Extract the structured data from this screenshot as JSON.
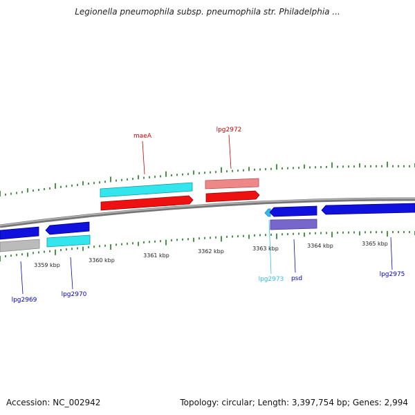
{
  "title": "Legionella pneumophila subsp. pneumophila str. Philadelphia ...",
  "footer": {
    "accession": "Accession: NC_002942",
    "topology": "Topology: circular; Length: 3,397,754 bp; Genes: 2,994"
  },
  "scale": {
    "unit": "kbp",
    "ticks": [
      {
        "label": "3359 kbp",
        "pos": 3359
      },
      {
        "label": "3360 kbp",
        "pos": 3360
      },
      {
        "label": "3361 kbp",
        "pos": 3361
      },
      {
        "label": "3362 kbp",
        "pos": 3362
      },
      {
        "label": "3363 kbp",
        "pos": 3363
      },
      {
        "label": "3364 kbp",
        "pos": 3364
      },
      {
        "label": "3365 kbp",
        "pos": 3365
      }
    ]
  },
  "genes": [
    {
      "label": "maeA",
      "strand": "forward",
      "color": "#cc0000"
    },
    {
      "label": "lpg2972",
      "strand": "forward",
      "color": "#cc0000"
    },
    {
      "label": "lpg2969",
      "strand": "reverse",
      "color": "#0000cc"
    },
    {
      "label": "lpg2970",
      "strand": "reverse",
      "color": "#0000cc"
    },
    {
      "label": "lpg2973",
      "strand": "reverse",
      "color": "#33bbee"
    },
    {
      "label": "psd",
      "strand": "reverse",
      "color": "#0000cc"
    },
    {
      "label": "lpg2975",
      "strand": "reverse",
      "color": "#0000cc"
    }
  ],
  "colors": {
    "forward_cds": "#ee1111",
    "reverse_cds": "#1111dd",
    "forward_feature_cyan": "#33e6ee",
    "forward_feature_pink": "#ee8888",
    "reverse_feature_gray": "#bbbbbb",
    "reverse_feature_cyan": "#33e6ee",
    "reverse_feature_purple": "#7766cc",
    "tick": "#1a7a1a",
    "backbone": "#888888"
  }
}
